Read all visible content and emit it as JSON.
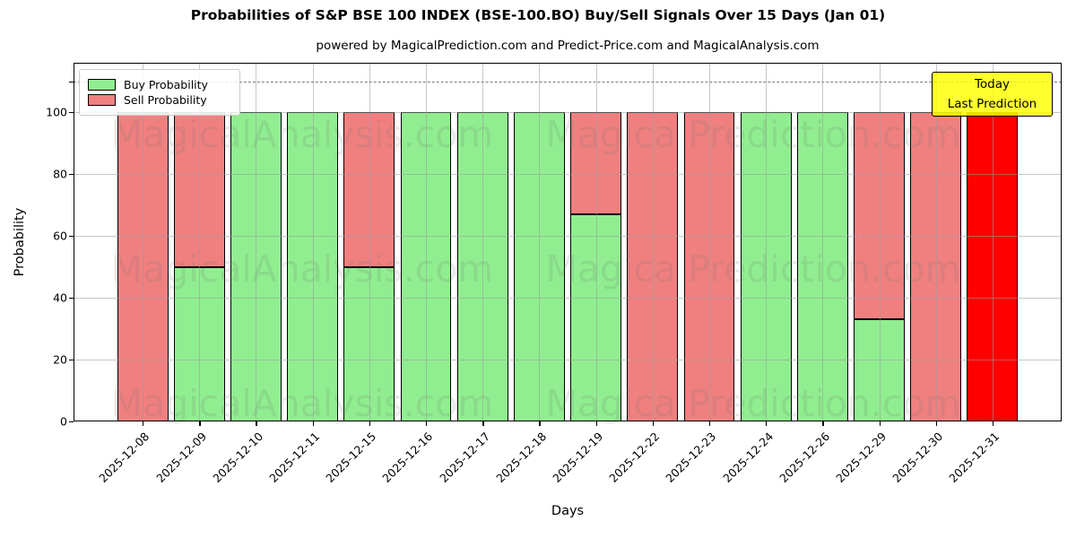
{
  "title": "Probabilities of S&P BSE 100 INDEX (BSE-100.BO) Buy/Sell Signals Over 15 Days (Jan 01)",
  "subtitle": "powered by MagicalPrediction.com and Predict-Price.com and MagicalAnalysis.com",
  "axes": {
    "ylabel": "Probability",
    "xlabel": "Days",
    "yticks": [
      0,
      20,
      40,
      60,
      80,
      100
    ],
    "minor_ytick": 110
  },
  "legend": {
    "items": [
      {
        "label": "Buy Probability",
        "color": "#90ee90"
      },
      {
        "label": "Sell Probability",
        "color": "#f08080"
      }
    ]
  },
  "today_box": {
    "line1": "Today",
    "line2": "Last Prediction",
    "bg_color": "#ffff00"
  },
  "watermarks": {
    "left_text": "MagicalAnalysis.com",
    "right_text": "Magica Prediction.com"
  },
  "chart_data": {
    "type": "bar",
    "stacked": true,
    "title": "Probabilities of S&P BSE 100 INDEX (BSE-100.BO) Buy/Sell Signals Over 15 Days (Jan 01)",
    "xlabel": "Days",
    "ylabel": "Probability",
    "categories": [
      "2025-12-08",
      "2025-12-09",
      "2025-12-10",
      "2025-12-11",
      "2025-12-15",
      "2025-12-16",
      "2025-12-17",
      "2025-12-18",
      "2025-12-19",
      "2025-12-22",
      "2025-12-23",
      "2025-12-24",
      "2025-12-26",
      "2025-12-29",
      "2025-12-30",
      "2025-12-31"
    ],
    "series": [
      {
        "name": "Buy Probability",
        "color": "#90ee90",
        "values": [
          0,
          50,
          100,
          100,
          50,
          100,
          100,
          100,
          67,
          0,
          0,
          100,
          100,
          33,
          0,
          0
        ]
      },
      {
        "name": "Sell Probability",
        "color": "#f08080",
        "values": [
          100,
          50,
          0,
          0,
          50,
          0,
          0,
          0,
          33,
          100,
          100,
          0,
          0,
          67,
          100,
          100
        ]
      }
    ],
    "last_bar_sell_color": "#ff0000",
    "last_bar_note": "Today / Last Prediction",
    "ylim": [
      0,
      116
    ],
    "dashed_line_y": 110,
    "bar_width": 0.9,
    "x_margin": 1.22,
    "grid": true,
    "legend_position": "upper left",
    "edge_color": "#000000"
  }
}
